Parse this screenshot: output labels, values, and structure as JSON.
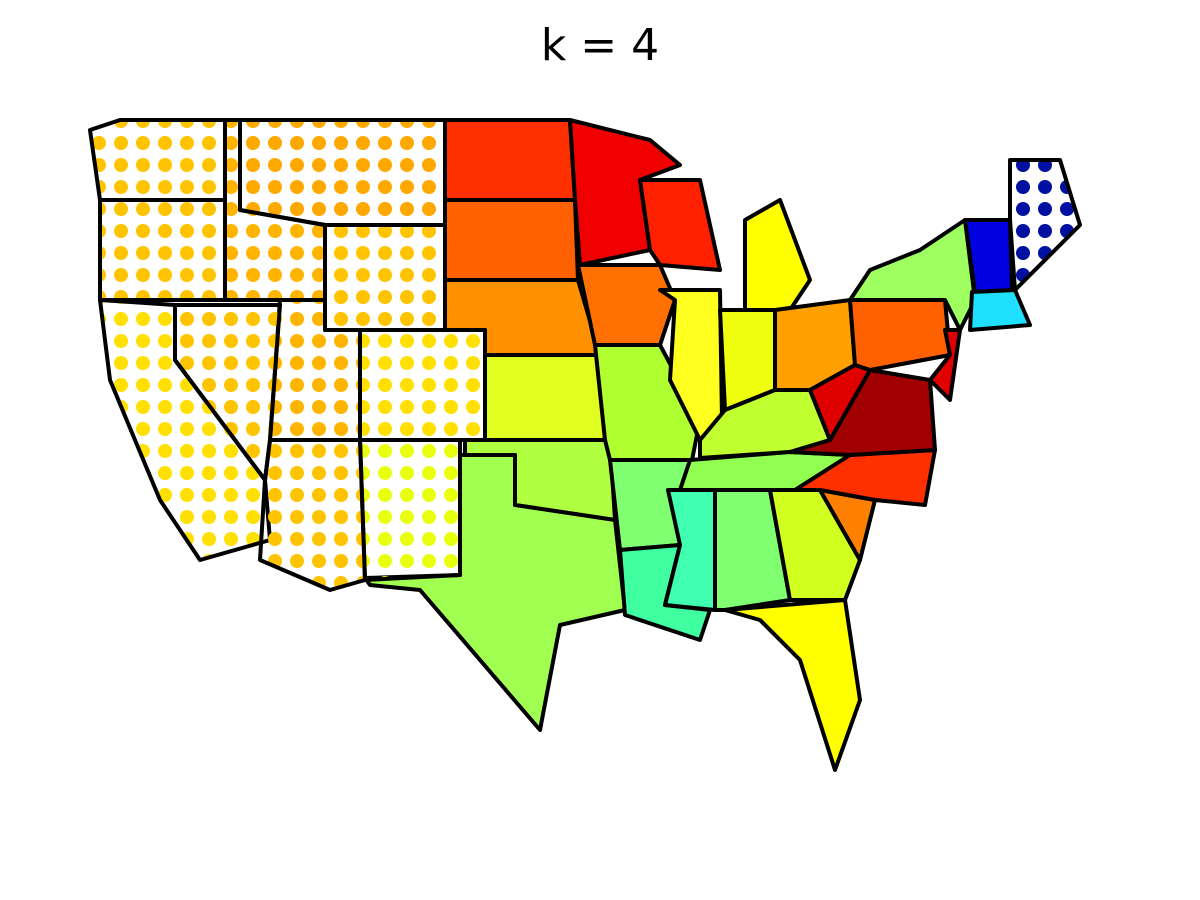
{
  "title": "k = 4"
}
